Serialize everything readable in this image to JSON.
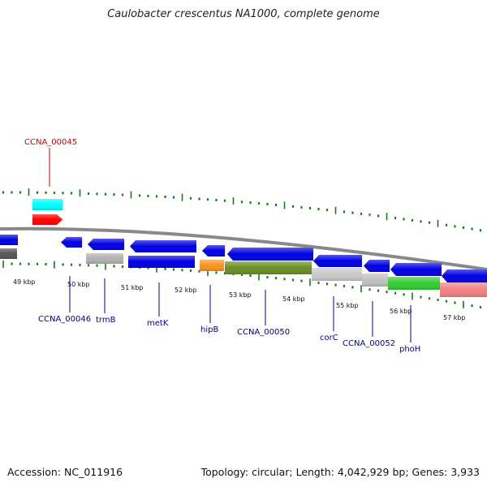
{
  "title": "Caulobacter crescentus NA1000, complete genome",
  "footer": {
    "accession": "Accession: NC_011916",
    "summary": "Topology: circular; Length: 4,042,929 bp; Genes: 3,933"
  },
  "ruler_labels": [
    "49 kbp",
    "50 kbp",
    "51 kbp",
    "52 kbp",
    "53 kbp",
    "54 kbp",
    "55 kbp",
    "56 kbp",
    "57 kbp"
  ],
  "gene_labels": [
    {
      "text": "CCNA_00045",
      "color": "#cc0000"
    },
    {
      "text": "CCNA_00046",
      "color": "#00008b"
    },
    {
      "text": "trmB",
      "color": "#00008b"
    },
    {
      "text": "metK",
      "color": "#00008b"
    },
    {
      "text": "hipB",
      "color": "#00008b"
    },
    {
      "text": "CCNA_00050",
      "color": "#00008b"
    },
    {
      "text": "corC",
      "color": "#00008b"
    },
    {
      "text": "CCNA_00052",
      "color": "#00008b"
    },
    {
      "text": "phoH",
      "color": "#00008b"
    }
  ],
  "colors": {
    "cds": "#0000e6",
    "gene_gray": "#b0b0b0",
    "misc_olive": "#6b8e23",
    "misc_orange": "#f7941d",
    "misc_green": "#33cc33",
    "misc_pink": "#f08080",
    "cyan": "#00ffff",
    "red": "#ff0000",
    "tick": "#1a7a1a",
    "backbone": "#888888"
  }
}
